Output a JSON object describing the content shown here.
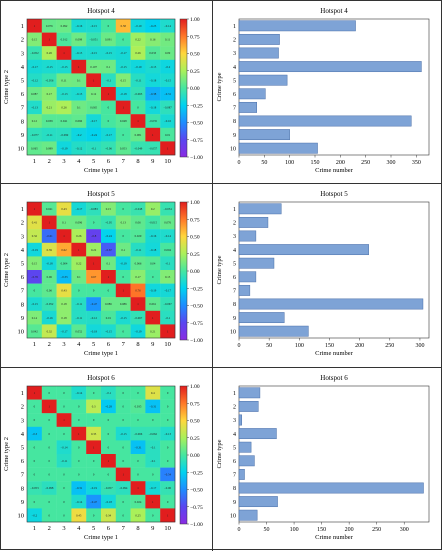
{
  "heatmap_axes": {
    "xlabel": "Crime type 1",
    "ylabel": "Crime type 2",
    "ticks": [
      "1",
      "2",
      "3",
      "4",
      "5",
      "6",
      "7",
      "8",
      "9",
      "10"
    ],
    "colorbar_ticks": [
      "1.00",
      "0.75",
      "0.50",
      "0.25",
      "0.00",
      "−0.25",
      "−0.50",
      "−0.75",
      "−1.00"
    ]
  },
  "bar_axes": {
    "xlabel": "Crime number",
    "ylabel": "Crime type",
    "ticks": [
      "1",
      "2",
      "3",
      "4",
      "5",
      "6",
      "7",
      "8",
      "9",
      "10"
    ]
  },
  "chart_data": [
    {
      "type": "heatmap",
      "title": "Hotspot 4",
      "vmin": -1,
      "vmax": 1,
      "colormap": "rainbow (purple → blue → cyan → green → yellow → red)",
      "x": [
        "1",
        "2",
        "3",
        "4",
        "5",
        "6",
        "7",
        "8",
        "9",
        "10"
      ],
      "y": [
        "1",
        "2",
        "3",
        "4",
        "5",
        "6",
        "7",
        "8",
        "9",
        "10"
      ],
      "values": [
        [
          1,
          0.076,
          0.092,
          -0.16,
          -0.15,
          0.0,
          0.58,
          -0.19,
          -0.25,
          -0.14
        ],
        [
          0.15,
          1,
          0.012,
          0.098,
          -0.051,
          0.091,
          0.0,
          0.22,
          0.16,
          0.11
        ],
        [
          -0.052,
          0.26,
          1,
          -0.15,
          -0.15,
          -0.15,
          -0.17,
          0.26,
          0.033,
          0.09
        ],
        [
          -0.17,
          -0.15,
          -0.15,
          1,
          0.107,
          0.1,
          -0.15,
          -0.19,
          -0.15,
          -0.2
        ],
        [
          -0.12,
          -0.056,
          0.11,
          0.1,
          1,
          -0.1,
          0.15,
          -0.11,
          -0.18,
          -0.15
        ],
        [
          0.087,
          0.17,
          -0.13,
          -0.15,
          0.12,
          1,
          -0.18,
          -0.063,
          -0.38,
          -0.31
        ],
        [
          -0.13,
          0.21,
          0.26,
          0.1,
          0.065,
          0.0,
          1,
          0.0,
          -0.18,
          -0.087
        ],
        [
          0.12,
          0.039,
          0.041,
          0.066,
          -0.17,
          0.0,
          0.048,
          1,
          -0.035,
          -0.16
        ],
        [
          -0.077,
          -0.11,
          -0.099,
          -0.2,
          -0.24,
          -0.17,
          0.0,
          0.081,
          1,
          0.01
        ],
        [
          0.065,
          0.089,
          -0.19,
          -0.12,
          -0.1,
          -0.06,
          0.053,
          -0.049,
          -0.057,
          1
        ]
      ]
    },
    {
      "type": "bar",
      "orientation": "horizontal",
      "title": "Hotspot 4",
      "categories": [
        "1",
        "2",
        "3",
        "4",
        "5",
        "6",
        "7",
        "8",
        "9",
        "10"
      ],
      "values": [
        230,
        80,
        78,
        360,
        95,
        52,
        35,
        340,
        100,
        155
      ],
      "xlim": [
        0,
        375
      ],
      "xticks": [
        0,
        50,
        100,
        150,
        200,
        250,
        300,
        350
      ],
      "xlabel": "Crime number",
      "ylabel": "Crime type"
    },
    {
      "type": "heatmap",
      "title": "Hotspot 5",
      "vmin": -1,
      "vmax": 1,
      "x": [
        "1",
        "2",
        "3",
        "4",
        "5",
        "6",
        "7",
        "8",
        "9",
        "10"
      ],
      "y": [
        "1",
        "2",
        "3",
        "4",
        "5",
        "6",
        "7",
        "8",
        "9",
        "10"
      ],
      "values": [
        [
          1,
          0.041,
          0.43,
          -0.17,
          -0.083,
          0.15,
          0.0,
          -0.048,
          0.2,
          -0.054
        ],
        [
          0.41,
          1,
          0.1,
          0.096,
          0.0,
          -0.05,
          0.13,
          0.06,
          -0.015,
          0.076
        ],
        [
          0.32,
          -0.61,
          1,
          0.26,
          -0.8,
          -0.24,
          0.0,
          0.029,
          -0.16,
          -0.14
        ],
        [
          -0.19,
          0.39,
          0.62,
          1,
          0.22,
          -0.67,
          0.1,
          -0.11,
          -0.18,
          0.004
        ],
        [
          0.15,
          -0.18,
          0.004,
          0.22,
          1,
          0.1,
          -0.19,
          0.066,
          0.04,
          -0.1
        ],
        [
          -0.76,
          0.06,
          -0.33,
          0.1,
          0.67,
          1,
          0.0,
          0.17,
          0.0,
          0.15
        ],
        [
          0.0,
          0.06,
          0.43,
          0.0,
          0.0,
          0.0,
          1,
          0.76,
          -0.19,
          -0.17
        ],
        [
          -0.15,
          -0.052,
          0.18,
          -0.11,
          -0.47,
          0.086,
          0.086,
          1,
          0.061,
          -0.067
        ],
        [
          0.14,
          -0.16,
          0.18,
          -0.11,
          -0.12,
          0.01,
          -0.15,
          -0.067,
          1,
          -0.1
        ],
        [
          0.042,
          0.32,
          -0.17,
          0.052,
          -0.18,
          -0.15,
          0.0,
          -0.19,
          0.21,
          1
        ]
      ]
    },
    {
      "type": "bar",
      "orientation": "horizontal",
      "title": "Hotspot 5",
      "categories": [
        "1",
        "2",
        "3",
        "4",
        "5",
        "6",
        "7",
        "8",
        "9",
        "10"
      ],
      "values": [
        70,
        48,
        28,
        215,
        58,
        28,
        18,
        305,
        75,
        115
      ],
      "xlim": [
        0,
        315
      ],
      "xticks": [
        0,
        50,
        100,
        150,
        200,
        250,
        300
      ],
      "xlabel": "Crime number",
      "ylabel": "Crime type"
    },
    {
      "type": "heatmap",
      "title": "Hotspot 6",
      "vmin": -1,
      "vmax": 1,
      "x": [
        "1",
        "2",
        "3",
        "4",
        "5",
        "6",
        "7",
        "8",
        "9",
        "10"
      ],
      "y": [
        "1",
        "2",
        "3",
        "4",
        "5",
        "6",
        "7",
        "8",
        "9",
        "10"
      ],
      "values": [
        [
          1,
          0.0,
          0.0,
          -0.14,
          0.0,
          -0.1,
          0.0,
          0.0,
          0.4,
          0.0
        ],
        [
          0.0,
          1,
          0.0,
          0.0,
          0.3,
          -0.28,
          0.0,
          0.035,
          -0.31,
          0.0
        ],
        [
          0.0,
          0.0,
          1,
          0.0,
          0.0,
          0.0,
          0.0,
          0.0,
          0.0,
          0.0
        ],
        [
          -0.3,
          0.0,
          0.0,
          1,
          0.35,
          0.0,
          -0.15,
          -0.066,
          -0.062,
          -0.13
        ],
        [
          0.0,
          0.0,
          -0.14,
          0.0,
          1,
          0.0,
          0.0,
          -0.31,
          -0.1,
          0.0
        ],
        [
          0.0,
          0.0,
          -0.11,
          0.0,
          0.0,
          1,
          0.0,
          0.0,
          -0.1,
          0.0
        ],
        [
          0.0,
          0.0,
          0.0,
          0.0,
          0.0,
          0.0,
          1,
          0.0,
          0.0,
          -0.54
        ],
        [
          -0.053,
          -0.098,
          0.0,
          -0.31,
          -0.19,
          -0.057,
          -0.094,
          1,
          -0.17,
          -0.06
        ],
        [
          0.0,
          0.0,
          0.0,
          -0.14,
          -0.47,
          -0.18,
          0.0,
          0.024,
          1,
          0.0
        ],
        [
          -0.2,
          0.0,
          0.0,
          0.45,
          0.0,
          0.34,
          0.0,
          0.25,
          0.0,
          1
        ]
      ]
    },
    {
      "type": "bar",
      "orientation": "horizontal",
      "title": "Hotspot 6",
      "categories": [
        "1",
        "2",
        "3",
        "4",
        "5",
        "6",
        "7",
        "8",
        "9",
        "10"
      ],
      "values": [
        38,
        35,
        5,
        68,
        22,
        28,
        10,
        335,
        70,
        33
      ],
      "xlim": [
        0,
        345
      ],
      "xticks": [
        0,
        50,
        100,
        150,
        200,
        250,
        300
      ],
      "xlabel": "Crime number",
      "ylabel": "Crime type"
    }
  ],
  "colors": {
    "bar_fill": "#7ea3d6",
    "bar_stroke": "#4a6fa8",
    "axis": "#222222"
  }
}
